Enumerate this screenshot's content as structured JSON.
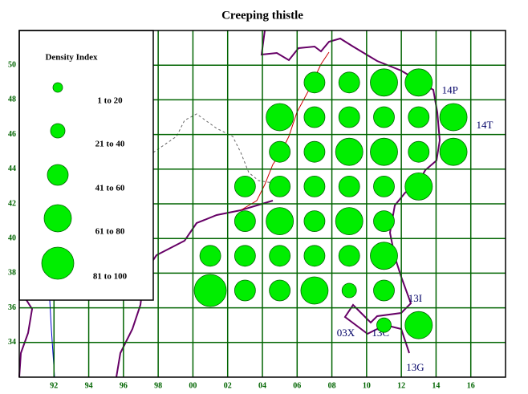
{
  "map": {
    "title": "Creeping thistle",
    "xlim": [
      90,
      118
    ],
    "ylim": [
      32,
      52
    ],
    "xticks": [
      {
        "value": 92,
        "label": "92"
      },
      {
        "value": 94,
        "label": "94"
      },
      {
        "value": 96,
        "label": "96"
      },
      {
        "value": 98,
        "label": "98"
      },
      {
        "value": 100,
        "label": "00"
      },
      {
        "value": 102,
        "label": "02"
      },
      {
        "value": 104,
        "label": "04"
      },
      {
        "value": 106,
        "label": "06"
      },
      {
        "value": 108,
        "label": "08"
      },
      {
        "value": 110,
        "label": "10"
      },
      {
        "value": 112,
        "label": "12"
      },
      {
        "value": 114,
        "label": "14"
      },
      {
        "value": 116,
        "label": "16"
      }
    ],
    "yticks": [
      34,
      36,
      38,
      40,
      42,
      44,
      46,
      48,
      50
    ],
    "grid_color": "#006400",
    "bubble_color": "#00ee00",
    "legend": {
      "title": "Density Index",
      "classes": [
        "1 to 20",
        "21 to 40",
        "41 to 60",
        "61 to 80",
        "81 to 100"
      ]
    },
    "cell_labels": [
      {
        "text": "14P",
        "x": 114.8,
        "y": 48.5
      },
      {
        "text": "14T",
        "x": 116.8,
        "y": 46.5
      },
      {
        "text": "13I",
        "x": 112.8,
        "y": 36.5
      },
      {
        "text": "03X",
        "x": 108.8,
        "y": 34.5
      },
      {
        "text": "13C",
        "x": 110.8,
        "y": 34.5
      },
      {
        "text": "13G",
        "x": 112.8,
        "y": 32.5
      }
    ],
    "bubbles": [
      {
        "x": 107,
        "y": 49,
        "class": 2
      },
      {
        "x": 109,
        "y": 49,
        "class": 2
      },
      {
        "x": 111,
        "y": 49,
        "class": 3
      },
      {
        "x": 113,
        "y": 49,
        "class": 3
      },
      {
        "x": 105,
        "y": 47,
        "class": 3
      },
      {
        "x": 107,
        "y": 47,
        "class": 2
      },
      {
        "x": 109,
        "y": 47,
        "class": 2
      },
      {
        "x": 111,
        "y": 47,
        "class": 2
      },
      {
        "x": 113,
        "y": 47,
        "class": 2
      },
      {
        "x": 115,
        "y": 47,
        "class": 3
      },
      {
        "x": 105,
        "y": 45,
        "class": 2
      },
      {
        "x": 107,
        "y": 45,
        "class": 2
      },
      {
        "x": 109,
        "y": 45,
        "class": 3
      },
      {
        "x": 111,
        "y": 45,
        "class": 3
      },
      {
        "x": 113,
        "y": 45,
        "class": 2
      },
      {
        "x": 115,
        "y": 45,
        "class": 3
      },
      {
        "x": 103,
        "y": 43,
        "class": 2
      },
      {
        "x": 105,
        "y": 43,
        "class": 2
      },
      {
        "x": 107,
        "y": 43,
        "class": 2
      },
      {
        "x": 109,
        "y": 43,
        "class": 2
      },
      {
        "x": 111,
        "y": 43,
        "class": 2
      },
      {
        "x": 113,
        "y": 43,
        "class": 3
      },
      {
        "x": 103,
        "y": 41,
        "class": 2
      },
      {
        "x": 105,
        "y": 41,
        "class": 3
      },
      {
        "x": 107,
        "y": 41,
        "class": 2
      },
      {
        "x": 109,
        "y": 41,
        "class": 3
      },
      {
        "x": 111,
        "y": 41,
        "class": 2
      },
      {
        "x": 101,
        "y": 39,
        "class": 2
      },
      {
        "x": 103,
        "y": 39,
        "class": 2
      },
      {
        "x": 105,
        "y": 39,
        "class": 2
      },
      {
        "x": 107,
        "y": 39,
        "class": 2
      },
      {
        "x": 109,
        "y": 39,
        "class": 2
      },
      {
        "x": 111,
        "y": 39,
        "class": 3
      },
      {
        "x": 101,
        "y": 37,
        "class": 4
      },
      {
        "x": 103,
        "y": 37,
        "class": 2
      },
      {
        "x": 105,
        "y": 37,
        "class": 2
      },
      {
        "x": 107,
        "y": 37,
        "class": 3
      },
      {
        "x": 109,
        "y": 37,
        "class": 1
      },
      {
        "x": 111,
        "y": 37,
        "class": 2
      },
      {
        "x": 111,
        "y": 35,
        "class": 1
      },
      {
        "x": 113,
        "y": 35,
        "class": 3
      }
    ]
  }
}
